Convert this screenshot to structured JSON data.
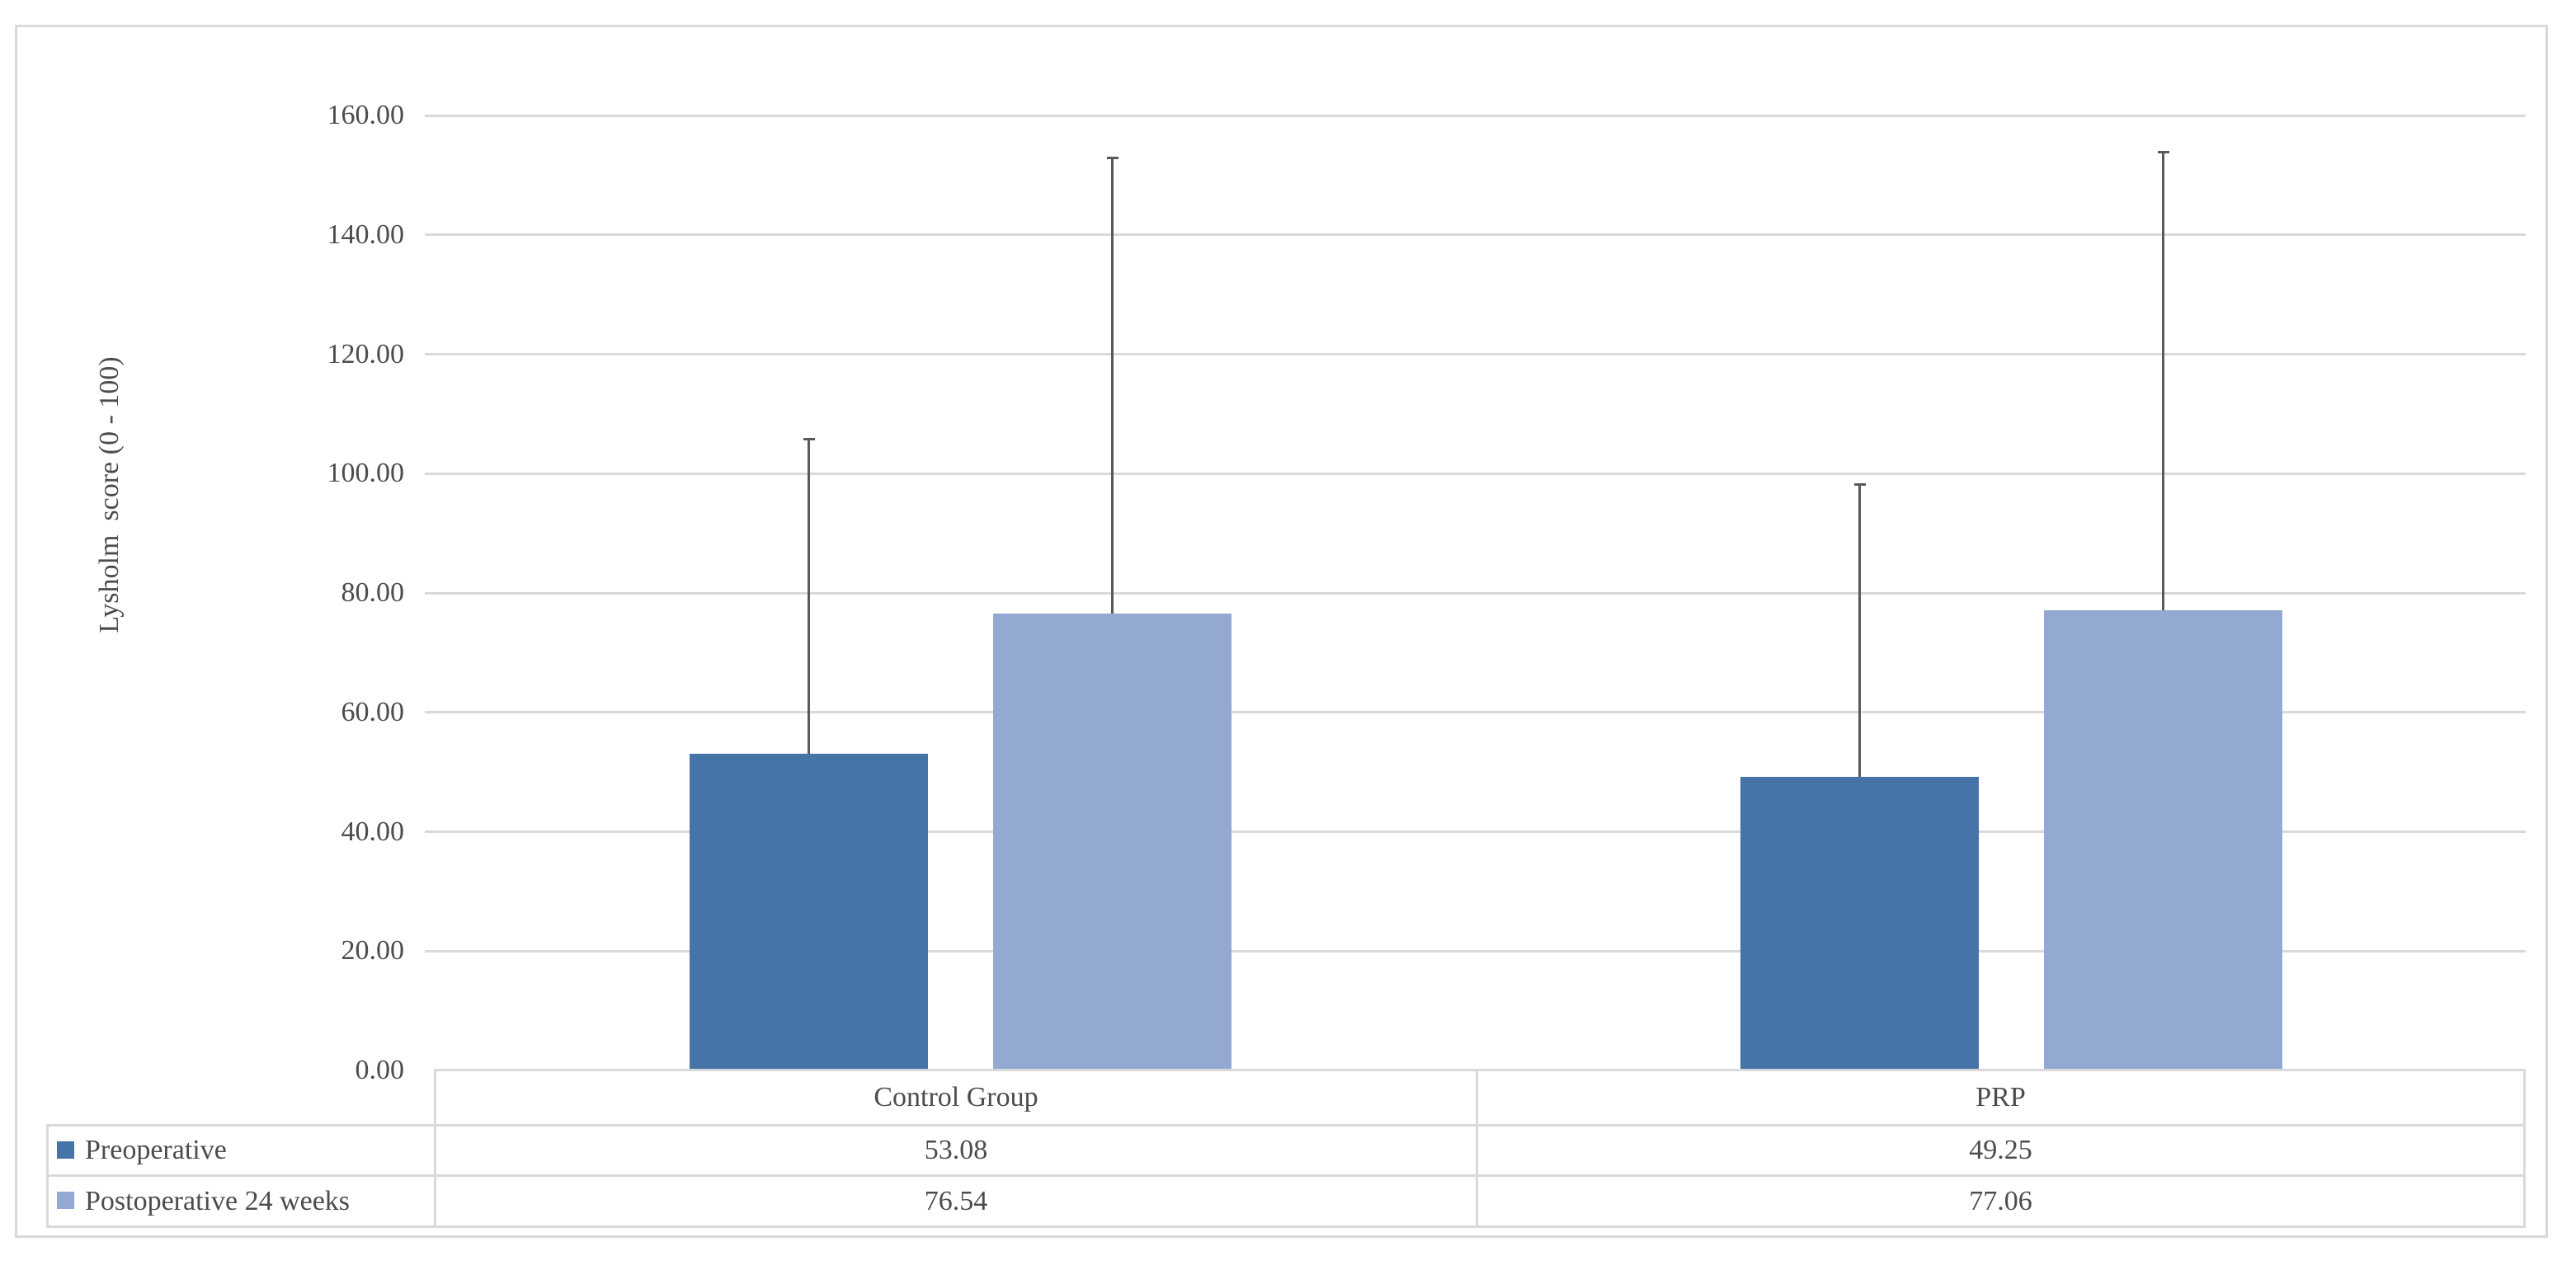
{
  "chart_data": {
    "type": "bar",
    "title": "",
    "xlabel": "",
    "ylabel": "Lysholm  score (0 - 100)",
    "categories": [
      "Control Group",
      "PRP"
    ],
    "series": [
      {
        "name": "Preoperative",
        "color": "#4674A8",
        "values": [
          53.08,
          49.25
        ],
        "error_bar_tops": [
          105.8,
          98.2
        ]
      },
      {
        "name": "Postoperative 24 weeks",
        "color": "#94A9D2",
        "values": [
          76.54,
          77.06
        ],
        "error_bar_tops": [
          152.9,
          153.9
        ]
      }
    ],
    "ylim": [
      0,
      160
    ],
    "ytick_step": 20,
    "ytick_labels": [
      "0.00",
      "20.00",
      "40.00",
      "60.00",
      "80.00",
      "100.00",
      "120.00",
      "140.00",
      "160.00"
    ],
    "grid": true,
    "legend_position": "data-table-left",
    "value_format": "0.00"
  },
  "table": {
    "column_headers": [
      "Control Group",
      "PRP"
    ],
    "rows": [
      {
        "legend": "Preoperative",
        "values": [
          "53.08",
          "49.25"
        ]
      },
      {
        "legend": "Postoperative 24 weeks",
        "values": [
          "76.54",
          "77.06"
        ]
      }
    ]
  },
  "colors": {
    "series1": "#4674A8",
    "series2": "#94A9D2",
    "gridline": "#D9D9D9",
    "chart_border": "#D9D9D9",
    "table_border": "#D9D9D9",
    "error_bar": "#595959",
    "text": "#4C4C4C",
    "background": "#FFFFFF"
  }
}
